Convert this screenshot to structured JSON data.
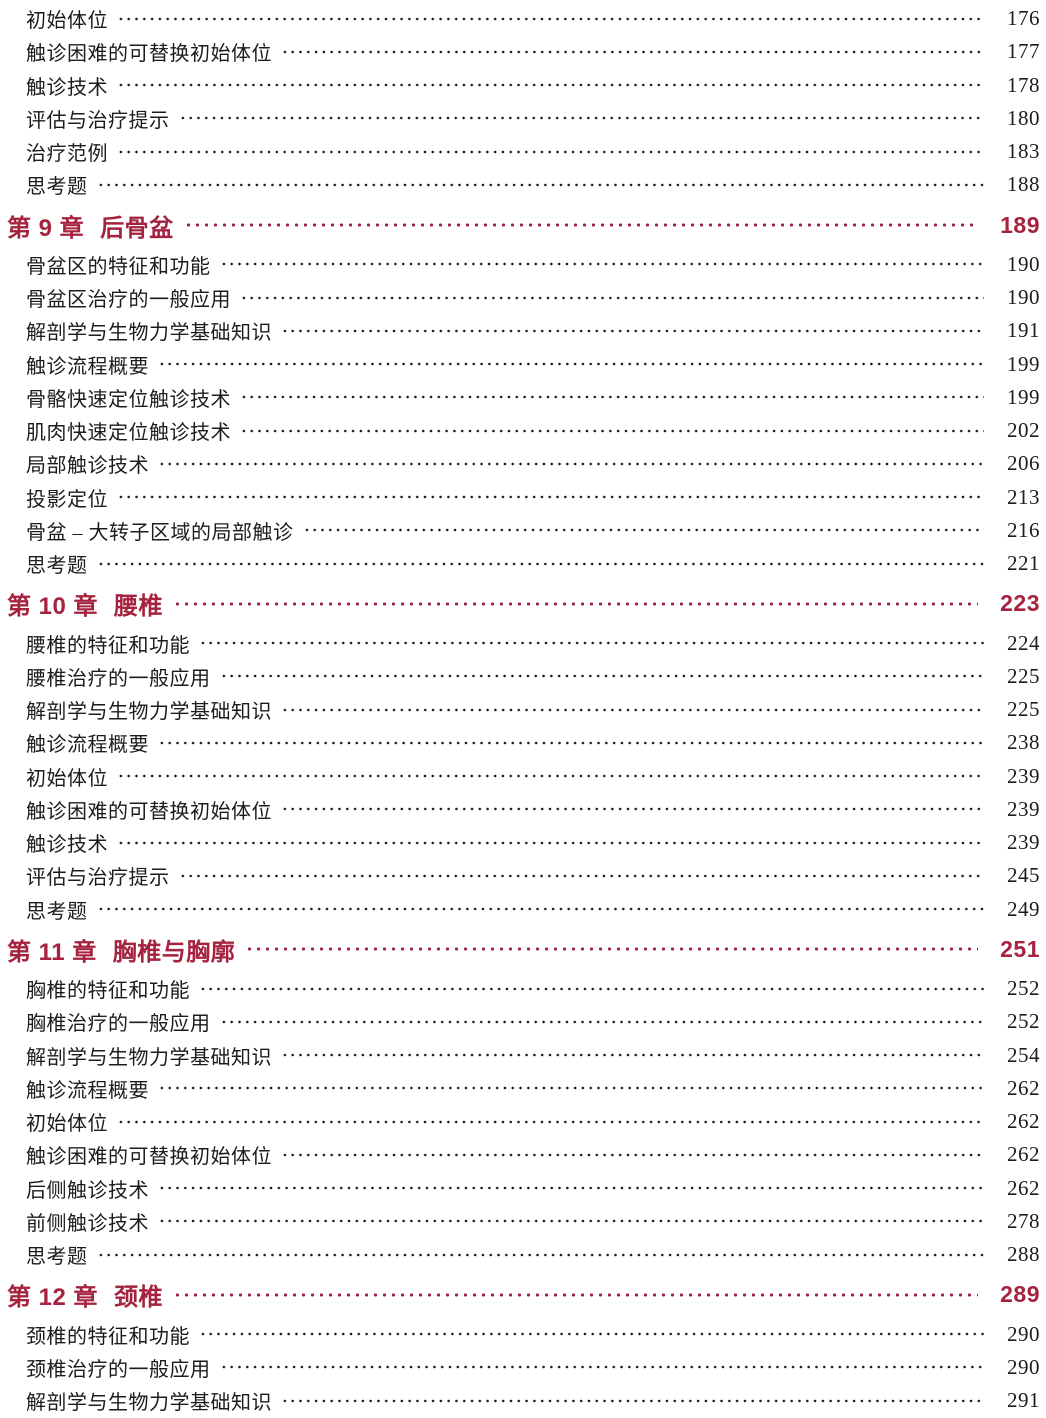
{
  "page": {
    "kind": "book-table-of-contents",
    "accent_color": "#A62340",
    "text_color": "#1c1c1c"
  },
  "toc": {
    "entries": [
      {
        "type": "sub",
        "label": "初始体位",
        "page": "176"
      },
      {
        "type": "sub",
        "label": "触诊困难的可替换初始体位",
        "page": "177"
      },
      {
        "type": "sub",
        "label": "触诊技术",
        "page": "178"
      },
      {
        "type": "sub",
        "label": "评估与治疗提示",
        "page": "180"
      },
      {
        "type": "sub",
        "label": "治疗范例",
        "page": "183"
      },
      {
        "type": "sub",
        "label": "思考题",
        "page": "188"
      },
      {
        "type": "chapter",
        "prefix": "第 9 章",
        "title": "后骨盆",
        "page": "189"
      },
      {
        "type": "sub",
        "label": "骨盆区的特征和功能",
        "page": "190"
      },
      {
        "type": "sub",
        "label": "骨盆区治疗的一般应用",
        "page": "190"
      },
      {
        "type": "sub",
        "label": "解剖学与生物力学基础知识",
        "page": "191"
      },
      {
        "type": "sub",
        "label": "触诊流程概要",
        "page": "199"
      },
      {
        "type": "sub",
        "label": "骨骼快速定位触诊技术",
        "page": "199"
      },
      {
        "type": "sub",
        "label": "肌肉快速定位触诊技术",
        "page": "202"
      },
      {
        "type": "sub",
        "label": "局部触诊技术",
        "page": "206"
      },
      {
        "type": "sub",
        "label": "投影定位",
        "page": "213"
      },
      {
        "type": "sub",
        "label": "骨盆 – 大转子区域的局部触诊",
        "page": "216"
      },
      {
        "type": "sub",
        "label": "思考题",
        "page": "221"
      },
      {
        "type": "chapter",
        "prefix": "第 10 章",
        "title": "腰椎",
        "page": "223"
      },
      {
        "type": "sub",
        "label": "腰椎的特征和功能",
        "page": "224"
      },
      {
        "type": "sub",
        "label": "腰椎治疗的一般应用",
        "page": "225"
      },
      {
        "type": "sub",
        "label": "解剖学与生物力学基础知识",
        "page": "225"
      },
      {
        "type": "sub",
        "label": "触诊流程概要",
        "page": "238"
      },
      {
        "type": "sub",
        "label": "初始体位",
        "page": "239"
      },
      {
        "type": "sub",
        "label": "触诊困难的可替换初始体位",
        "page": "239"
      },
      {
        "type": "sub",
        "label": "触诊技术",
        "page": "239"
      },
      {
        "type": "sub",
        "label": "评估与治疗提示",
        "page": "245"
      },
      {
        "type": "sub",
        "label": "思考题",
        "page": "249"
      },
      {
        "type": "chapter",
        "prefix": "第 11 章",
        "title": "胸椎与胸廓",
        "page": "251"
      },
      {
        "type": "sub",
        "label": "胸椎的特征和功能",
        "page": "252"
      },
      {
        "type": "sub",
        "label": "胸椎治疗的一般应用",
        "page": "252"
      },
      {
        "type": "sub",
        "label": "解剖学与生物力学基础知识",
        "page": "254"
      },
      {
        "type": "sub",
        "label": "触诊流程概要",
        "page": "262"
      },
      {
        "type": "sub",
        "label": "初始体位",
        "page": "262"
      },
      {
        "type": "sub",
        "label": "触诊困难的可替换初始体位",
        "page": "262"
      },
      {
        "type": "sub",
        "label": "后侧触诊技术",
        "page": "262"
      },
      {
        "type": "sub",
        "label": "前侧触诊技术",
        "page": "278"
      },
      {
        "type": "sub",
        "label": "思考题",
        "page": "288"
      },
      {
        "type": "chapter",
        "prefix": "第 12 章",
        "title": "颈椎",
        "page": "289"
      },
      {
        "type": "sub",
        "label": "颈椎的特征和功能",
        "page": "290"
      },
      {
        "type": "sub",
        "label": "颈椎治疗的一般应用",
        "page": "290"
      },
      {
        "type": "sub",
        "label": "解剖学与生物力学基础知识",
        "page": "291"
      }
    ]
  }
}
